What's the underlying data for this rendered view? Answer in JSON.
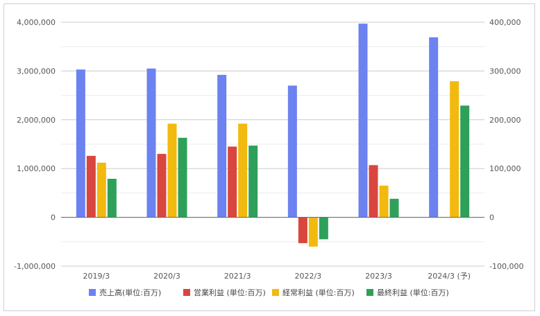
{
  "chart_data": {
    "type": "bar",
    "categories": [
      "2019/3",
      "2020/3",
      "2021/3",
      "2022/3",
      "2023/3",
      "2024/3 (予)"
    ],
    "series": [
      {
        "name": "売上高(単位:百万)",
        "axis": "left",
        "color": "#6c82f0",
        "values": [
          3030000,
          3050000,
          2920000,
          2700000,
          3970000,
          3690000
        ]
      },
      {
        "name": "営業利益 (単位:百万)",
        "axis": "right",
        "color": "#d9463e",
        "values": [
          126000,
          130000,
          145000,
          -53000,
          107000,
          null
        ]
      },
      {
        "name": "経常利益 (単位:百万)",
        "axis": "right",
        "color": "#f2b90f",
        "values": [
          112000,
          192000,
          192000,
          -60000,
          65000,
          279000
        ]
      },
      {
        "name": "最終利益 (単位:百万)",
        "axis": "right",
        "color": "#2ea05a",
        "values": [
          79000,
          163000,
          147000,
          -45000,
          38000,
          229000
        ]
      }
    ],
    "y_left": {
      "min": -1000000,
      "max": 4000000,
      "ticks": [
        "-1,000,000",
        "0",
        "1,000,000",
        "2,000,000",
        "3,000,000",
        "4,000,000"
      ]
    },
    "y_right": {
      "min": -100000,
      "max": 400000,
      "ticks": [
        "-100,000",
        "0",
        "100,000",
        "200,000",
        "300,000",
        "400,000"
      ]
    },
    "grid": true,
    "legend_position": "bottom"
  }
}
